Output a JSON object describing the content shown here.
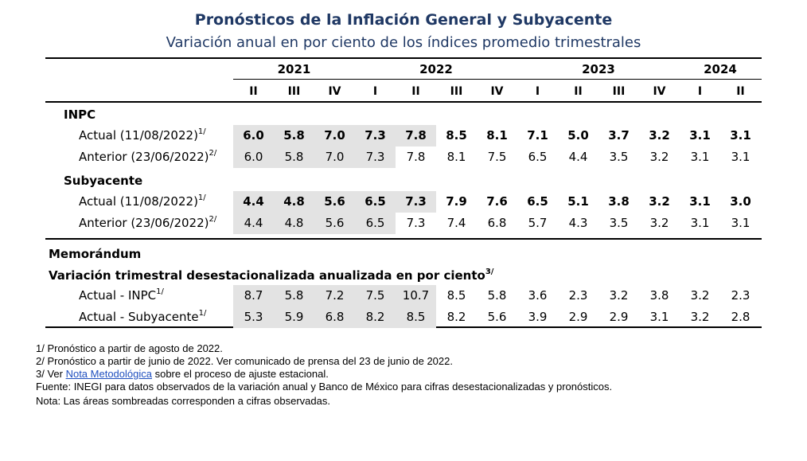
{
  "title": "Pronósticos de la Inflación General y Subyacente",
  "subtitle": "Variación anual en por ciento de los índices promedio trimestrales",
  "years": [
    "2021",
    "2022",
    "2023",
    "2024"
  ],
  "quarters": [
    "II",
    "III",
    "IV",
    "I",
    "II",
    "III",
    "IV",
    "I",
    "II",
    "III",
    "IV",
    "I",
    "II"
  ],
  "sections": {
    "inpc": "INPC",
    "subyacente": "Subyacente",
    "memorandum": "Memorándum",
    "variacion": "Variación trimestral desestacionalizada anualizada en por ciento",
    "variacion_sup": "3/"
  },
  "rows": {
    "inpc_actual": {
      "label": "Actual (11/08/2022)",
      "sup": "1/",
      "values": [
        "6.0",
        "5.8",
        "7.0",
        "7.3",
        "7.8",
        "8.5",
        "8.1",
        "7.1",
        "5.0",
        "3.7",
        "3.2",
        "3.1",
        "3.1"
      ]
    },
    "inpc_anterior": {
      "label": "Anterior (23/06/2022)",
      "sup": "2/",
      "values": [
        "6.0",
        "5.8",
        "7.0",
        "7.3",
        "7.8",
        "8.1",
        "7.5",
        "6.5",
        "4.4",
        "3.5",
        "3.2",
        "3.1",
        "3.1"
      ]
    },
    "sub_actual": {
      "label": "Actual (11/08/2022)",
      "sup": "1/",
      "values": [
        "4.4",
        "4.8",
        "5.6",
        "6.5",
        "7.3",
        "7.9",
        "7.6",
        "6.5",
        "5.1",
        "3.8",
        "3.2",
        "3.1",
        "3.0"
      ]
    },
    "sub_anterior": {
      "label": "Anterior (23/06/2022)",
      "sup": "2/",
      "values": [
        "4.4",
        "4.8",
        "5.6",
        "6.5",
        "7.3",
        "7.4",
        "6.8",
        "5.7",
        "4.3",
        "3.5",
        "3.2",
        "3.1",
        "3.1"
      ]
    },
    "mem_inpc": {
      "label": "Actual - INPC",
      "sup": "1/",
      "values": [
        "8.7",
        "5.8",
        "7.2",
        "7.5",
        "10.7",
        "8.5",
        "5.8",
        "3.6",
        "2.3",
        "3.2",
        "3.8",
        "3.2",
        "2.3"
      ]
    },
    "mem_sub": {
      "label": "Actual - Subyacente",
      "sup": "1/",
      "values": [
        "5.3",
        "5.9",
        "6.8",
        "8.2",
        "8.5",
        "8.2",
        "5.6",
        "3.9",
        "2.9",
        "2.9",
        "3.1",
        "3.2",
        "2.8"
      ]
    }
  },
  "notes": {
    "n1": "1/ Pronóstico a partir de agosto de 2022.",
    "n2": "2/ Pronóstico a partir de junio de 2022. Ver comunicado de prensa del 23 de junio de 2022.",
    "n3_prefix": "3/ Ver ",
    "n3_link": "Nota Metodológica",
    "n3_suffix": " sobre el proceso de ajuste estacional.",
    "fuente": "Fuente: INEGI para datos observados de la variación anual y Banco de México para cifras desestacionalizadas y pronósticos.",
    "nota": "Nota: Las áreas sombreadas corresponden a cifras observadas."
  },
  "colors": {
    "title": "#1f3864",
    "shade": "#e3e3e3",
    "link": "#1f4fbf"
  }
}
